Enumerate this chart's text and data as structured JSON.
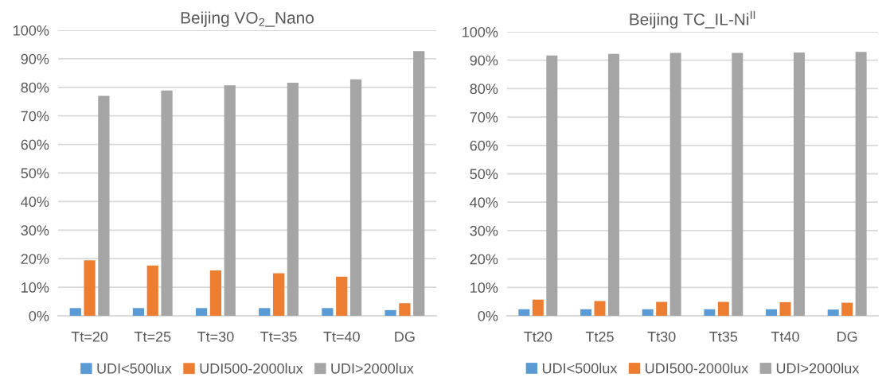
{
  "chart_data": [
    {
      "type": "bar",
      "title": "Beijing VO$_{2}$_Nano",
      "categories": [
        "Tt=20",
        "Tt=25",
        "Tt=30",
        "Tt=35",
        "Tt=40",
        "DG"
      ],
      "series": [
        {
          "name": "UDI<500lux",
          "color": "#5b9bd5",
          "values": [
            2.7,
            2.7,
            2.7,
            2.7,
            2.7,
            2.0
          ]
        },
        {
          "name": "UDI500-2000lux",
          "color": "#ed7d31",
          "values": [
            19.4,
            17.6,
            15.9,
            14.9,
            13.7,
            4.4
          ]
        },
        {
          "name": "UDI>2000lux",
          "color": "#a5a5a5",
          "values": [
            77.0,
            78.9,
            80.7,
            81.6,
            82.8,
            92.7
          ]
        }
      ],
      "ylim": [
        0,
        100
      ],
      "yticks": [
        {
          "value": 0,
          "label": "0%"
        },
        {
          "value": 10,
          "label": "10%"
        },
        {
          "value": 20,
          "label": "20%"
        },
        {
          "value": 30,
          "label": "30%"
        },
        {
          "value": 40,
          "label": "40%"
        },
        {
          "value": 50,
          "label": "50%"
        },
        {
          "value": 60,
          "label": "60%"
        },
        {
          "value": 70,
          "label": "70%"
        },
        {
          "value": 80,
          "label": "80%"
        },
        {
          "value": 90,
          "label": "90%"
        },
        {
          "value": 100,
          "label": "100%"
        }
      ],
      "grid": "y",
      "legend": "bottom"
    },
    {
      "type": "bar",
      "title": "Beijing TC_IL-Ni$^{II}$",
      "categories": [
        "Tt20",
        "Tt25",
        "Tt30",
        "Tt35",
        "Tt40",
        "DG"
      ],
      "series": [
        {
          "name": "UDI<500lux",
          "color": "#5b9bd5",
          "values": [
            2.3,
            2.3,
            2.3,
            2.3,
            2.3,
            2.2
          ]
        },
        {
          "name": "UDI500-2000lux",
          "color": "#ed7d31",
          "values": [
            5.7,
            5.2,
            4.9,
            4.9,
            4.8,
            4.6
          ]
        },
        {
          "name": "UDI>2000lux",
          "color": "#a5a5a5",
          "values": [
            91.7,
            92.2,
            92.6,
            92.6,
            92.7,
            92.9
          ]
        }
      ],
      "ylim": [
        0,
        100
      ],
      "yticks": [
        {
          "value": 0,
          "label": "0%"
        },
        {
          "value": 10,
          "label": "10%"
        },
        {
          "value": 20,
          "label": "20%"
        },
        {
          "value": 30,
          "label": "30%"
        },
        {
          "value": 40,
          "label": "40%"
        },
        {
          "value": 50,
          "label": "50%"
        },
        {
          "value": 60,
          "label": "60%"
        },
        {
          "value": 70,
          "label": "70%"
        },
        {
          "value": 80,
          "label": "80%"
        },
        {
          "value": 90,
          "label": "90%"
        },
        {
          "value": 100,
          "label": "100%"
        }
      ],
      "grid": "y",
      "legend": "bottom"
    }
  ]
}
